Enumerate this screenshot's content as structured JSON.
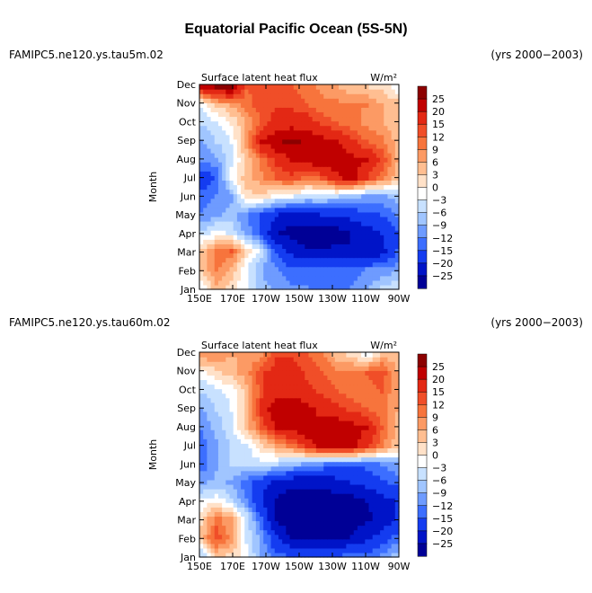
{
  "title": "Equatorial Pacific Ocean (5S-5N)",
  "panels": [
    {
      "case": "FAMIPC5.ne120.ys.tau5m.02",
      "years": "(yrs 2000−2003)",
      "subtitle": "Surface latent heat flux",
      "units": "W/m²"
    },
    {
      "case": "FAMIPC5.ne120.ys.tau60m.02",
      "years": "(yrs 2000−2003)",
      "subtitle": "Surface latent heat flux",
      "units": "W/m²"
    }
  ],
  "chart_data": [
    {
      "type": "heatmap",
      "title": "Surface latent heat flux",
      "ylabel": "Month",
      "xlabel": "",
      "x_ticks": [
        "150E",
        "170E",
        "170W",
        "150W",
        "130W",
        "110W",
        "90W"
      ],
      "y_ticks": [
        "Jan",
        "Feb",
        "Mar",
        "Apr",
        "May",
        "Jun",
        "Jul",
        "Aug",
        "Sep",
        "Oct",
        "Nov",
        "Dec"
      ],
      "colorbar_levels": [
        "25",
        "20",
        "15",
        "12",
        "9",
        "6",
        "3",
        "0",
        "−3",
        "−6",
        "−9",
        "−12",
        "−15",
        "−20",
        "−25"
      ],
      "colorbar_colors": [
        "#8c0000",
        "#c00000",
        "#e32814",
        "#f04e28",
        "#f7743c",
        "#fc9a64",
        "#ffbe91",
        "#ffe1c8",
        "#ffffff",
        "#c8e1ff",
        "#a0c5ff",
        "#6e9bff",
        "#3c6eff",
        "#143cf0",
        "#0014c8",
        "#000096"
      ],
      "units": "W/m²",
      "z": [
        [
          -2,
          5,
          2,
          -3,
          -8,
          -10,
          -12,
          -12,
          -14,
          -14,
          -12,
          -10,
          -6,
          -4
        ],
        [
          3,
          10,
          5,
          -3,
          -9,
          -12,
          -14,
          -14,
          -14,
          -14,
          -14,
          -12,
          -12,
          -10
        ],
        [
          4,
          9,
          12,
          2,
          -4,
          -16,
          -22,
          -25,
          -25,
          -24,
          -25,
          -25,
          -22,
          -15
        ],
        [
          -5,
          -2,
          -4,
          -10,
          -16,
          -25,
          -27,
          -27,
          -27,
          -27,
          -25,
          -22,
          -20,
          -16
        ],
        [
          -12,
          -10,
          -8,
          -12,
          -16,
          -20,
          -22,
          -22,
          -20,
          -20,
          -18,
          -16,
          -15,
          -12
        ],
        [
          -14,
          -12,
          -10,
          2,
          2,
          -2,
          -3,
          -5,
          -5,
          -6,
          -8,
          -10,
          -10,
          -8
        ],
        [
          -18,
          -15,
          -2,
          5,
          8,
          12,
          14,
          10,
          12,
          18,
          22,
          15,
          10,
          4
        ],
        [
          -12,
          -10,
          -4,
          3,
          10,
          16,
          20,
          22,
          24,
          24,
          22,
          20,
          14,
          6
        ],
        [
          -10,
          -6,
          -3,
          8,
          20,
          24,
          26,
          24,
          22,
          20,
          16,
          12,
          10,
          5
        ],
        [
          -6,
          -4,
          0,
          6,
          12,
          18,
          18,
          18,
          14,
          12,
          10,
          8,
          6,
          4
        ],
        [
          -3,
          3,
          6,
          10,
          14,
          14,
          14,
          12,
          10,
          10,
          9,
          9,
          6,
          5
        ],
        [
          20,
          25,
          25,
          12,
          14,
          14,
          12,
          10,
          8,
          6,
          4,
          3,
          2,
          -2
        ]
      ]
    },
    {
      "type": "heatmap",
      "title": "Surface latent heat flux",
      "ylabel": "Month",
      "xlabel": "",
      "x_ticks": [
        "150E",
        "170E",
        "170W",
        "150W",
        "130W",
        "110W",
        "90W"
      ],
      "y_ticks": [
        "Jan",
        "Feb",
        "Mar",
        "Apr",
        "May",
        "Jun",
        "Jul",
        "Aug",
        "Sep",
        "Oct",
        "Nov",
        "Dec"
      ],
      "colorbar_levels": [
        "25",
        "20",
        "15",
        "12",
        "9",
        "6",
        "3",
        "0",
        "−3",
        "−6",
        "−9",
        "−12",
        "−15",
        "−20",
        "−25"
      ],
      "colorbar_colors": [
        "#8c0000",
        "#c00000",
        "#e32814",
        "#f04e28",
        "#f7743c",
        "#fc9a64",
        "#ffbe91",
        "#ffe1c8",
        "#ffffff",
        "#c8e1ff",
        "#a0c5ff",
        "#6e9bff",
        "#3c6eff",
        "#143cf0",
        "#0014c8",
        "#000096"
      ],
      "units": "W/m²",
      "z": [
        [
          -6,
          4,
          2,
          -2,
          -10,
          -14,
          -16,
          -16,
          -16,
          -16,
          -14,
          -14,
          -12,
          -8
        ],
        [
          4,
          14,
          8,
          -4,
          -10,
          -20,
          -26,
          -27,
          -27,
          -27,
          -25,
          -22,
          -18,
          -14
        ],
        [
          2,
          10,
          6,
          -4,
          -15,
          -26,
          -28,
          -28,
          -28,
          -27,
          -27,
          -26,
          -24,
          -20
        ],
        [
          -3,
          -1,
          -5,
          -12,
          -20,
          -26,
          -28,
          -28,
          -28,
          -27,
          -27,
          -25,
          -22,
          -20
        ],
        [
          -10,
          -8,
          -10,
          -14,
          -18,
          -22,
          -24,
          -24,
          -24,
          -22,
          -20,
          -18,
          -16,
          -14
        ],
        [
          -14,
          -10,
          -6,
          -6,
          -4,
          -6,
          -8,
          -10,
          -12,
          -14,
          -14,
          -14,
          -12,
          -10
        ],
        [
          -14,
          -10,
          -6,
          -4,
          2,
          6,
          10,
          16,
          22,
          24,
          22,
          16,
          10,
          4
        ],
        [
          -12,
          -8,
          -4,
          4,
          12,
          20,
          22,
          24,
          22,
          24,
          22,
          20,
          12,
          5
        ],
        [
          -10,
          -6,
          -3,
          4,
          16,
          24,
          24,
          22,
          18,
          16,
          14,
          12,
          10,
          6
        ],
        [
          -6,
          -4,
          -2,
          4,
          14,
          18,
          18,
          16,
          14,
          12,
          10,
          10,
          12,
          6
        ],
        [
          -2,
          2,
          4,
          8,
          14,
          18,
          18,
          14,
          12,
          10,
          10,
          12,
          14,
          6
        ],
        [
          8,
          8,
          6,
          6,
          8,
          14,
          14,
          12,
          10,
          4,
          2,
          -2,
          4,
          4
        ]
      ]
    }
  ]
}
